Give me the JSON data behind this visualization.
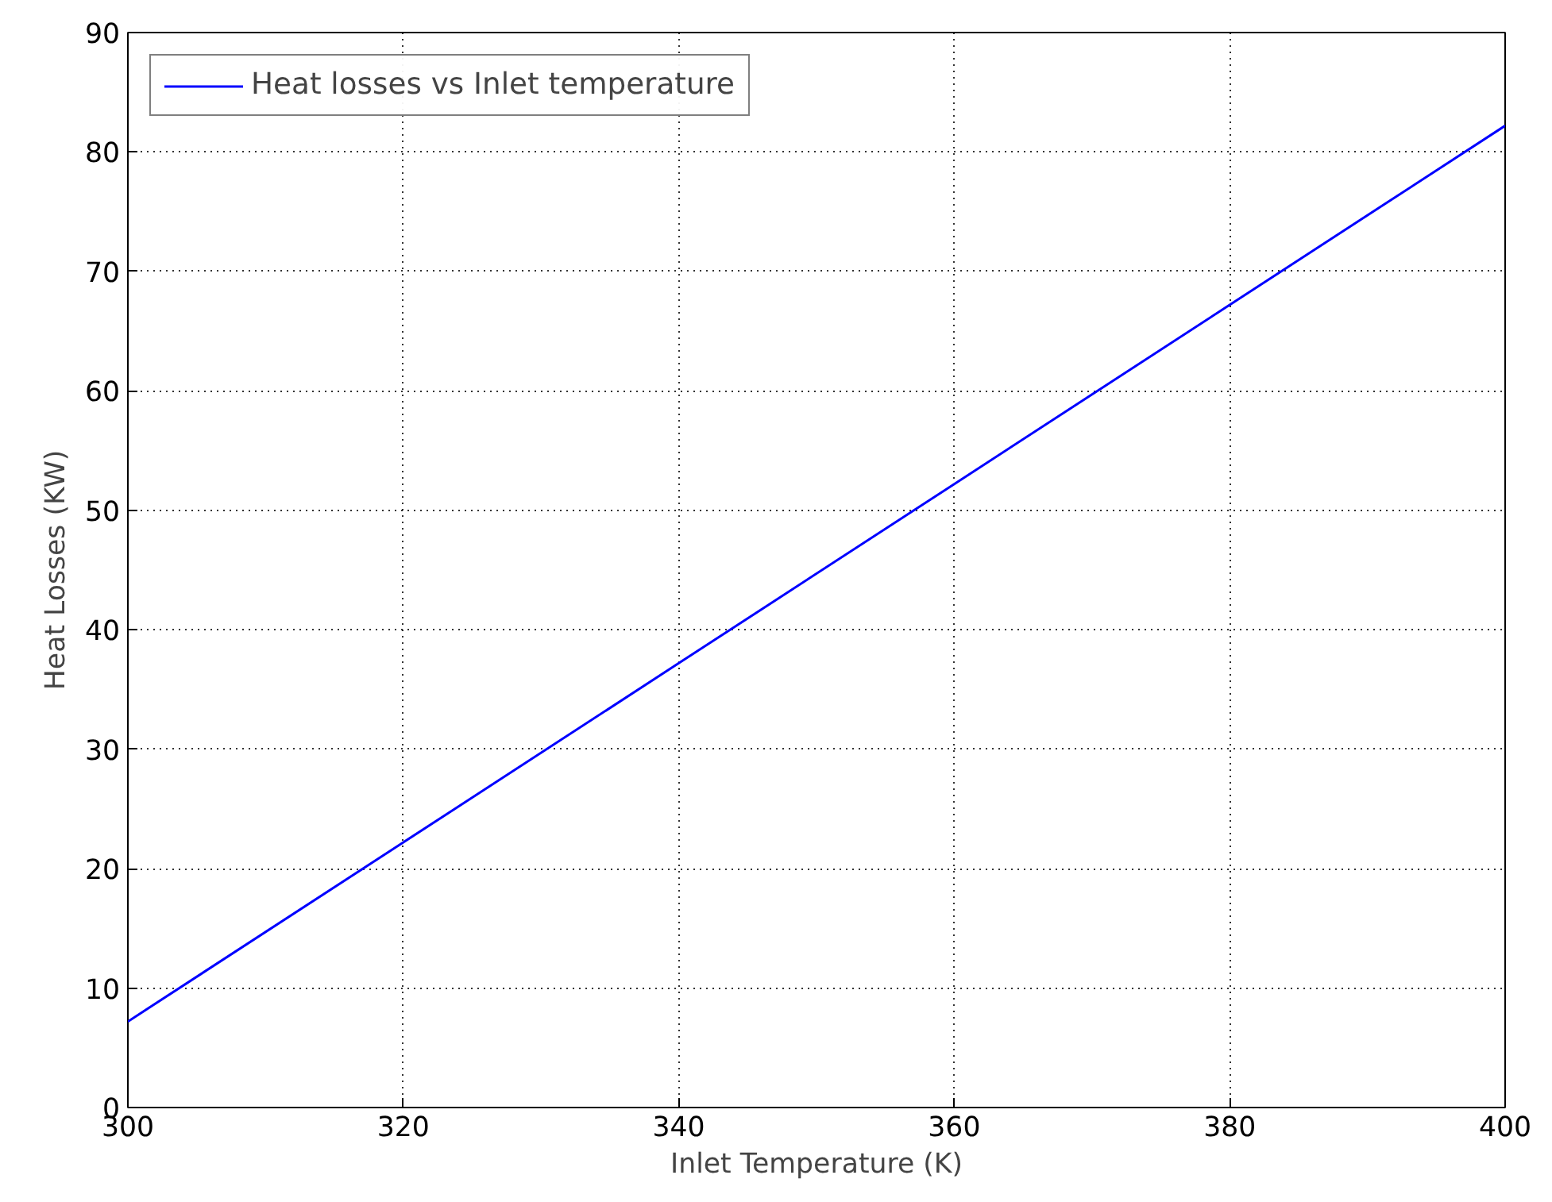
{
  "chart_data": {
    "type": "line",
    "xlabel": "Inlet Temperature (K)",
    "ylabel": "Heat Losses (KW)",
    "x": [
      300,
      320,
      340,
      360,
      380,
      400
    ],
    "series": [
      {
        "name": "Heat losses vs Inlet temperature",
        "color": "#0000ff",
        "values": [
          7.2,
          22.2,
          37.2,
          52.2,
          67.2,
          82.2
        ]
      }
    ],
    "xlim": [
      300,
      400
    ],
    "ylim": [
      0,
      90
    ],
    "xticks": [
      300,
      320,
      340,
      360,
      380,
      400
    ],
    "yticks": [
      0,
      10,
      20,
      30,
      40,
      50,
      60,
      70,
      80,
      90
    ],
    "grid": true,
    "legend": "top left",
    "line_style": "solid",
    "marker": "none"
  }
}
